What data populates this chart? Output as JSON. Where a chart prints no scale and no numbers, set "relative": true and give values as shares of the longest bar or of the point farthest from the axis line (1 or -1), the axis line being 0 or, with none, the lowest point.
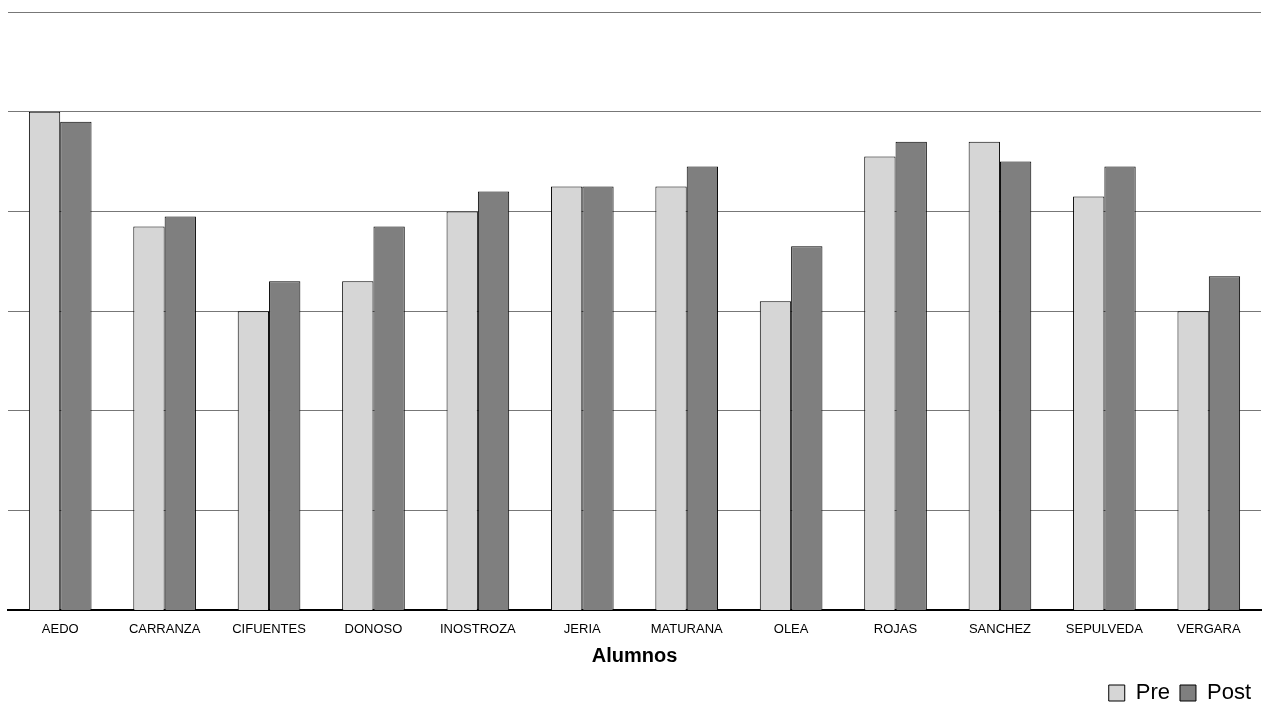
{
  "chart_data": {
    "type": "bar",
    "xlabel": "Alumnos",
    "relative": true,
    "grid": "y",
    "legend": "bottom right",
    "categories": [
      "AEDO",
      "CARRANZA",
      "CIFUENTES",
      "DONOSO",
      "INOSTROZA",
      "JERIA",
      "MATURANA",
      "OLEA",
      "ROJAS",
      "SANCHEZ",
      "SEPULVEDA",
      "VERGARA"
    ],
    "series": [
      {
        "name": "Pre",
        "color": "#d6d6d6",
        "values": [
          1,
          0.77,
          0.6,
          0.66,
          0.8,
          0.85,
          0.85,
          0.62,
          0.91,
          0.94,
          0.83,
          0.6
        ]
      },
      {
        "name": "Post",
        "color": "#7f7f7f",
        "values": [
          0.98,
          0.79,
          0.66,
          0.77,
          0.84,
          0.85,
          0.89,
          0.73,
          0.94,
          0.9,
          0.89,
          0.67
        ]
      }
    ]
  }
}
